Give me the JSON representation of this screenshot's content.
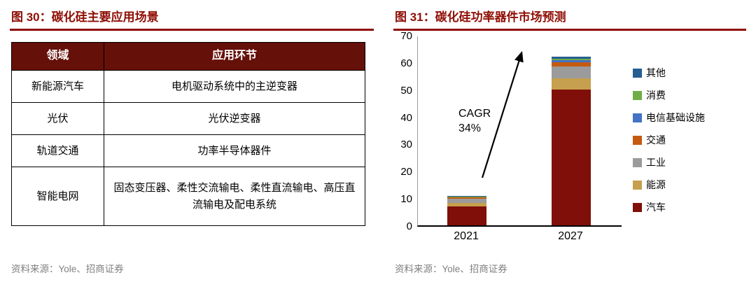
{
  "colors": {
    "accent": "#8E0E04",
    "table_header_bg": "#66100A",
    "source_text": "#808080"
  },
  "figure30": {
    "title": "图 30：碳化硅主要应用场景",
    "source": "资料来源：Yole、招商证券",
    "table": {
      "headers": [
        "领域",
        "应用环节"
      ],
      "rows": [
        [
          "新能源汽车",
          "电机驱动系统中的主逆变器"
        ],
        [
          "光伏",
          "光伏逆变器"
        ],
        [
          "轨道交通",
          "功率半导体器件"
        ],
        [
          "智能电网",
          "固态变压器、柔性交流输电、柔性直流输电、高压直流输电及配电系统"
        ]
      ]
    }
  },
  "figure31": {
    "title": "图 31：碳化硅功率器件市场预测",
    "source": "资料来源：Yole、招商证券"
  },
  "chart_data": {
    "type": "bar",
    "stacked": true,
    "title": "碳化硅功率器件市场预测",
    "categories": [
      "2021",
      "2027"
    ],
    "series": [
      {
        "name": "汽车",
        "color": "#7F0F08",
        "values": [
          7,
          50
        ]
      },
      {
        "name": "能源",
        "color": "#C6A04E",
        "values": [
          1.3,
          4
        ]
      },
      {
        "name": "工业",
        "color": "#9B9B9B",
        "values": [
          1.4,
          4.5
        ]
      },
      {
        "name": "交通",
        "color": "#C55A11",
        "values": [
          0.5,
          1.5
        ]
      },
      {
        "name": "电信基础设施",
        "color": "#4472C4",
        "values": [
          0.2,
          0.8
        ]
      },
      {
        "name": "消费",
        "color": "#70AD47",
        "values": [
          0.1,
          0.4
        ]
      },
      {
        "name": "其他",
        "color": "#255E91",
        "values": [
          0.2,
          0.8
        ]
      }
    ],
    "totals": [
      10.7,
      62
    ],
    "ylim": [
      0,
      70
    ],
    "yticks": [
      0,
      10,
      20,
      30,
      40,
      50,
      60,
      70
    ],
    "annotation": "CAGR\n34%",
    "legend_position": "right",
    "legend_order_top_to_bottom": [
      "其他",
      "消费",
      "电信基础设施",
      "交通",
      "工业",
      "能源",
      "汽车"
    ]
  }
}
